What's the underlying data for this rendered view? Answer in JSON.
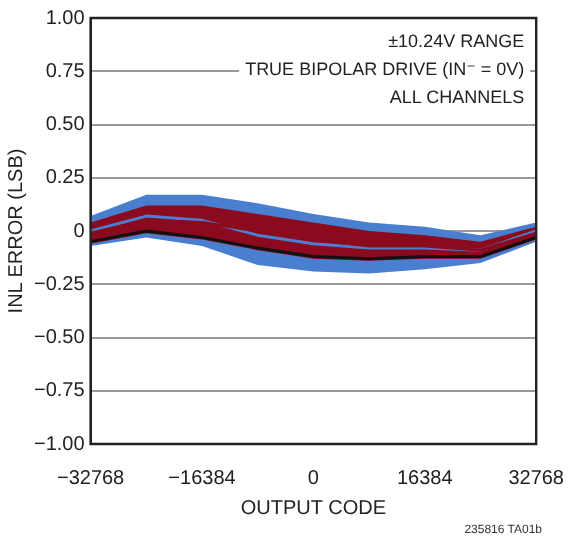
{
  "chart_data": {
    "type": "line",
    "xlabel": "OUTPUT CODE",
    "ylabel": "INL ERROR (LSB)",
    "x": [
      -32768,
      -24576,
      -16384,
      -8192,
      0,
      8192,
      16384,
      24576,
      32768
    ],
    "series": [
      {
        "color": "#4a7fcf",
        "values": [
          0,
          0.07,
          0.05,
          -0.02,
          -0.06,
          -0.08,
          -0.08,
          -0.09,
          0
        ],
        "lower": [
          -0.07,
          -0.03,
          -0.07,
          -0.16,
          -0.19,
          -0.2,
          -0.18,
          -0.15,
          -0.05
        ],
        "upper": [
          0.07,
          0.17,
          0.17,
          0.13,
          0.08,
          0.04,
          0.02,
          -0.02,
          0.04
        ]
      },
      {
        "color": "#8b0a1e",
        "values": [
          -0.01,
          0.05,
          0.04,
          0,
          -0.04,
          -0.07,
          -0.07,
          -0.09,
          -0.01
        ],
        "lower": [
          -0.06,
          -0.01,
          -0.04,
          -0.09,
          -0.13,
          -0.14,
          -0.13,
          -0.13,
          -0.04
        ],
        "upper": [
          0.04,
          0.12,
          0.12,
          0.08,
          0.04,
          0,
          -0.02,
          -0.05,
          0.02
        ]
      },
      {
        "color": "#111111",
        "values": [
          -0.05,
          0,
          -0.03,
          -0.08,
          -0.12,
          -0.13,
          -0.12,
          -0.12,
          -0.03
        ]
      }
    ],
    "xlim": [
      -32768,
      32768
    ],
    "xticks": [
      {
        "value": -32768,
        "label": "−32768"
      },
      {
        "value": -16384,
        "label": "−16384"
      },
      0,
      16384,
      32768
    ],
    "ylim": [
      -1,
      1
    ],
    "yticks": [
      {
        "value": -1,
        "label": "−1.00"
      },
      {
        "value": -0.75,
        "label": "−0.75"
      },
      {
        "value": -0.5,
        "label": "−0.50"
      },
      {
        "value": -0.25,
        "label": "−0.25"
      },
      0,
      0.25,
      {
        "value": 0.5,
        "label": "0.50"
      },
      0.75,
      {
        "value": 1,
        "label": "1.00"
      }
    ],
    "grid": "y",
    "legend": false,
    "annotations": [
      "±10.24V RANGE",
      "TRUE BIPOLAR DRIVE (IN⁻ = 0V)",
      "ALL CHANNELS",
      "235816 TA01b"
    ]
  }
}
